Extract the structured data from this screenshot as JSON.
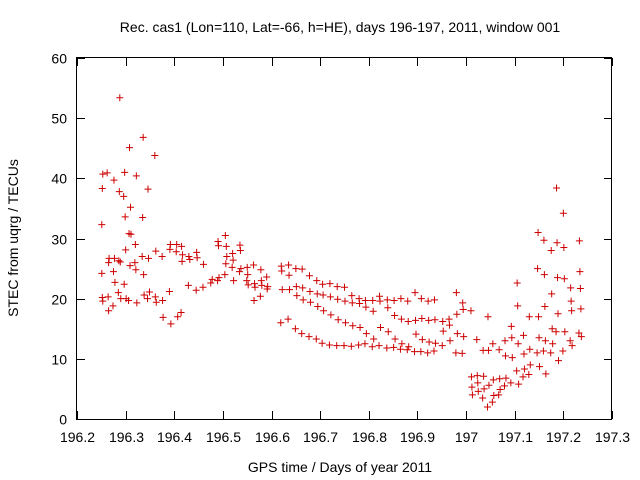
{
  "chart_data": {
    "type": "scatter",
    "title": "Rec. cas1 (Lon=110, Lat=-66, h=HE), days 196-197, 2011, window 001",
    "xlabel": "GPS time / Days of year 2011",
    "ylabel": "STEC from uqrg / TECUs",
    "xlim": [
      196.2,
      197.3
    ],
    "ylim": [
      0,
      60
    ],
    "xticks": [
      "196.2",
      "196.3",
      "196.4",
      "196.5",
      "196.6",
      "196.7",
      "196.8",
      "196.9",
      "197",
      "197.1",
      "197.2",
      "197.3"
    ],
    "yticks": [
      "0",
      "10",
      "20",
      "30",
      "40",
      "50",
      "60"
    ],
    "grid": false,
    "marker": "+",
    "color": "#cc0000",
    "series": [
      {
        "points": [
          [
            196.251,
            32.3
          ],
          [
            196.252,
            38.3
          ],
          [
            196.253,
            40.7
          ],
          [
            196.251,
            24.2
          ],
          [
            196.252,
            20.2
          ],
          [
            196.253,
            19.6
          ],
          [
            196.262,
            40.9
          ],
          [
            196.265,
            26.0
          ],
          [
            196.266,
            26.7
          ],
          [
            196.264,
            20.3
          ],
          [
            196.265,
            18.0
          ],
          [
            196.276,
            39.7
          ],
          [
            196.277,
            26.7
          ],
          [
            196.275,
            24.5
          ],
          [
            196.274,
            18.8
          ],
          [
            196.278,
            22.7
          ],
          [
            196.288,
            53.4
          ],
          [
            196.287,
            37.8
          ],
          [
            196.286,
            26.3
          ],
          [
            196.289,
            26.1
          ],
          [
            196.285,
            21.0
          ],
          [
            196.29,
            20.0
          ],
          [
            196.298,
            41.0
          ],
          [
            196.296,
            37.0
          ],
          [
            196.299,
            33.6
          ],
          [
            196.3,
            28.1
          ],
          [
            196.297,
            22.4
          ],
          [
            196.301,
            20.0
          ],
          [
            196.308,
            45.1
          ],
          [
            196.31,
            35.2
          ],
          [
            196.307,
            30.8
          ],
          [
            196.311,
            30.7
          ],
          [
            196.309,
            25.5
          ],
          [
            196.306,
            19.7
          ],
          [
            196.322,
            40.4
          ],
          [
            196.32,
            29.0
          ],
          [
            196.319,
            26.0
          ],
          [
            196.321,
            24.8
          ],
          [
            196.323,
            19.3
          ],
          [
            196.336,
            46.8
          ],
          [
            196.335,
            33.5
          ],
          [
            196.334,
            27.0
          ],
          [
            196.337,
            24.0
          ],
          [
            196.338,
            20.6
          ],
          [
            196.346,
            38.2
          ],
          [
            196.347,
            26.7
          ],
          [
            196.349,
            21.1
          ],
          [
            196.345,
            20.0
          ],
          [
            196.36,
            43.8
          ],
          [
            196.362,
            27.9
          ],
          [
            196.361,
            20.3
          ],
          [
            196.363,
            19.4
          ],
          [
            196.375,
            27.0
          ],
          [
            196.376,
            19.7
          ],
          [
            196.377,
            16.9
          ],
          [
            196.392,
            29.0
          ],
          [
            196.391,
            28.2
          ],
          [
            196.39,
            21.2
          ],
          [
            196.393,
            15.8
          ],
          [
            196.405,
            29.0
          ],
          [
            196.404,
            27.8
          ],
          [
            196.407,
            17.0
          ],
          [
            196.415,
            28.7
          ],
          [
            196.417,
            27.3
          ],
          [
            196.416,
            26.2
          ],
          [
            196.414,
            17.7
          ],
          [
            196.43,
            27.0
          ],
          [
            196.429,
            22.2
          ],
          [
            196.432,
            26.5
          ],
          [
            196.446,
            27.7
          ],
          [
            196.445,
            21.4
          ],
          [
            196.447,
            26.8
          ],
          [
            196.46,
            25.7
          ],
          [
            196.459,
            21.9
          ],
          [
            196.475,
            22.6
          ],
          [
            196.478,
            23.2
          ],
          [
            196.49,
            29.5
          ],
          [
            196.491,
            28.8
          ],
          [
            196.492,
            23.5
          ],
          [
            196.489,
            23.0
          ],
          [
            196.505,
            30.5
          ],
          [
            196.507,
            28.7
          ],
          [
            196.508,
            27.0
          ],
          [
            196.506,
            25.8
          ],
          [
            196.504,
            24.0
          ],
          [
            196.52,
            27.5
          ],
          [
            196.521,
            26.4
          ],
          [
            196.519,
            25.2
          ],
          [
            196.522,
            23.0
          ],
          [
            196.535,
            28.9
          ],
          [
            196.536,
            28.0
          ],
          [
            196.537,
            25.0
          ],
          [
            196.534,
            24.5
          ],
          [
            196.55,
            25.2
          ],
          [
            196.551,
            24.0
          ],
          [
            196.549,
            23.0
          ],
          [
            196.552,
            22.3
          ],
          [
            196.563,
            25.6
          ],
          [
            196.565,
            22.5
          ],
          [
            196.566,
            21.9
          ],
          [
            196.564,
            19.7
          ],
          [
            196.578,
            24.8
          ],
          [
            196.579,
            23.0
          ],
          [
            196.58,
            22.2
          ],
          [
            196.577,
            20.4
          ],
          [
            196.59,
            23.6
          ],
          [
            196.592,
            22.0
          ],
          [
            196.591,
            21.6
          ],
          [
            196.62,
            25.4
          ],
          [
            196.621,
            24.6
          ],
          [
            196.622,
            21.5
          ],
          [
            196.619,
            16.0
          ],
          [
            196.635,
            25.6
          ],
          [
            196.636,
            23.9
          ],
          [
            196.637,
            21.5
          ],
          [
            196.634,
            16.6
          ],
          [
            196.65,
            25.0
          ],
          [
            196.651,
            22.0
          ],
          [
            196.652,
            20.5
          ],
          [
            196.649,
            15.0
          ],
          [
            196.663,
            24.9
          ],
          [
            196.664,
            21.8
          ],
          [
            196.665,
            19.8
          ],
          [
            196.662,
            14.2
          ],
          [
            196.678,
            23.8
          ],
          [
            196.679,
            21.2
          ],
          [
            196.68,
            19.4
          ],
          [
            196.677,
            13.7
          ],
          [
            196.693,
            23.0
          ],
          [
            196.694,
            20.8
          ],
          [
            196.695,
            18.7
          ],
          [
            196.692,
            13.3
          ],
          [
            196.705,
            22.4
          ],
          [
            196.706,
            20.6
          ],
          [
            196.707,
            18.0
          ],
          [
            196.704,
            12.6
          ],
          [
            196.72,
            22.5
          ],
          [
            196.721,
            20.3
          ],
          [
            196.722,
            17.3
          ],
          [
            196.719,
            12.3
          ],
          [
            196.735,
            22.0
          ],
          [
            196.736,
            19.9
          ],
          [
            196.737,
            16.5
          ],
          [
            196.734,
            12.2
          ],
          [
            196.75,
            21.9
          ],
          [
            196.751,
            19.6
          ],
          [
            196.752,
            16.0
          ],
          [
            196.749,
            12.2
          ],
          [
            196.765,
            20.5
          ],
          [
            196.766,
            19.3
          ],
          [
            196.767,
            15.5
          ],
          [
            196.764,
            12.1
          ],
          [
            196.78,
            20.0
          ],
          [
            196.781,
            19.2
          ],
          [
            196.782,
            15.2
          ],
          [
            196.779,
            12.3
          ],
          [
            196.793,
            19.7
          ],
          [
            196.794,
            18.6
          ],
          [
            196.795,
            14.2
          ],
          [
            196.792,
            12.5
          ],
          [
            196.808,
            19.7
          ],
          [
            196.809,
            17.9
          ],
          [
            196.81,
            13.3
          ],
          [
            196.807,
            12.0
          ],
          [
            196.822,
            20.4
          ],
          [
            196.823,
            19.6
          ],
          [
            196.824,
            15.2
          ],
          [
            196.821,
            12.2
          ],
          [
            196.838,
            19.8
          ],
          [
            196.839,
            18.5
          ],
          [
            196.84,
            14.5
          ],
          [
            196.837,
            11.8
          ],
          [
            196.852,
            19.7
          ],
          [
            196.853,
            17.2
          ],
          [
            196.854,
            13.3
          ],
          [
            196.851,
            11.9
          ],
          [
            196.866,
            20.0
          ],
          [
            196.867,
            16.6
          ],
          [
            196.868,
            12.5
          ],
          [
            196.865,
            11.6
          ],
          [
            196.88,
            19.6
          ],
          [
            196.881,
            16.2
          ],
          [
            196.882,
            12.0
          ],
          [
            196.879,
            11.5
          ],
          [
            196.895,
            21.0
          ],
          [
            196.896,
            16.4
          ],
          [
            196.897,
            14.1
          ],
          [
            196.894,
            11.2
          ],
          [
            196.908,
            20.0
          ],
          [
            196.909,
            16.7
          ],
          [
            196.91,
            13.2
          ],
          [
            196.907,
            11.2
          ],
          [
            196.922,
            19.6
          ],
          [
            196.923,
            16.4
          ],
          [
            196.924,
            12.8
          ],
          [
            196.921,
            11.0
          ],
          [
            196.935,
            19.8
          ],
          [
            196.936,
            16.5
          ],
          [
            196.937,
            12.6
          ],
          [
            196.934,
            11.3
          ],
          [
            196.952,
            16.2
          ],
          [
            196.953,
            14.6
          ],
          [
            196.951,
            12.2
          ],
          [
            196.965,
            16.6
          ],
          [
            196.966,
            15.6
          ],
          [
            196.967,
            13.0
          ],
          [
            196.98,
            21.0
          ],
          [
            196.981,
            17.4
          ],
          [
            196.982,
            14.2
          ],
          [
            196.979,
            11.0
          ],
          [
            196.993,
            19.3
          ],
          [
            196.994,
            18.2
          ],
          [
            196.995,
            13.7
          ],
          [
            196.992,
            10.9
          ],
          [
            197.01,
            18.0
          ],
          [
            197.011,
            7.0
          ],
          [
            197.012,
            5.3
          ],
          [
            197.013,
            4.0
          ],
          [
            197.022,
            13.2
          ],
          [
            197.023,
            7.2
          ],
          [
            197.024,
            6.0
          ],
          [
            197.025,
            4.6
          ],
          [
            197.035,
            11.4
          ],
          [
            197.036,
            7.1
          ],
          [
            197.037,
            5.0
          ],
          [
            197.034,
            3.5
          ],
          [
            197.045,
            17.0
          ],
          [
            197.046,
            11.4
          ],
          [
            197.047,
            5.6
          ],
          [
            197.044,
            2.0
          ],
          [
            197.055,
            12.5
          ],
          [
            197.056,
            6.5
          ],
          [
            197.057,
            3.9
          ],
          [
            197.054,
            2.8
          ],
          [
            197.068,
            11.5
          ],
          [
            197.069,
            6.7
          ],
          [
            197.07,
            4.9
          ],
          [
            197.067,
            4.0
          ],
          [
            197.08,
            13.0
          ],
          [
            197.081,
            10.5
          ],
          [
            197.082,
            6.8
          ],
          [
            197.079,
            5.5
          ],
          [
            197.093,
            15.4
          ],
          [
            197.094,
            13.5
          ],
          [
            197.095,
            10.2
          ],
          [
            197.092,
            6.0
          ],
          [
            197.105,
            22.6
          ],
          [
            197.106,
            18.8
          ],
          [
            197.107,
            12.5
          ],
          [
            197.104,
            8.0
          ],
          [
            197.108,
            5.8
          ],
          [
            197.118,
            13.9
          ],
          [
            197.119,
            10.8
          ],
          [
            197.12,
            8.3
          ],
          [
            197.117,
            7.0
          ],
          [
            197.13,
            17.0
          ],
          [
            197.131,
            11.6
          ],
          [
            197.132,
            9.0
          ],
          [
            197.129,
            7.4
          ],
          [
            197.148,
            31.0
          ],
          [
            197.147,
            25.0
          ],
          [
            197.149,
            17.0
          ],
          [
            197.15,
            13.5
          ],
          [
            197.146,
            11.0
          ],
          [
            197.151,
            8.7
          ],
          [
            197.16,
            29.7
          ],
          [
            197.161,
            24.0
          ],
          [
            197.162,
            18.7
          ],
          [
            197.163,
            13.0
          ],
          [
            197.159,
            11.3
          ],
          [
            197.164,
            7.5
          ],
          [
            197.175,
            28.0
          ],
          [
            197.176,
            20.8
          ],
          [
            197.177,
            15.0
          ],
          [
            197.178,
            12.5
          ],
          [
            197.174,
            11.0
          ],
          [
            197.186,
            38.4
          ],
          [
            197.187,
            29.3
          ],
          [
            197.188,
            23.5
          ],
          [
            197.189,
            17.5
          ],
          [
            197.185,
            14.5
          ],
          [
            197.19,
            9.7
          ],
          [
            197.2,
            34.2
          ],
          [
            197.201,
            28.5
          ],
          [
            197.202,
            23.3
          ],
          [
            197.203,
            14.5
          ],
          [
            197.199,
            11.3
          ],
          [
            197.215,
            21.8
          ],
          [
            197.216,
            19.6
          ],
          [
            197.217,
            18.0
          ],
          [
            197.214,
            13.0
          ],
          [
            197.218,
            12.2
          ],
          [
            197.233,
            29.6
          ],
          [
            197.234,
            24.5
          ],
          [
            197.235,
            21.7
          ],
          [
            197.236,
            18.3
          ],
          [
            197.232,
            14.3
          ],
          [
            197.237,
            13.7
          ]
        ]
      }
    ]
  }
}
